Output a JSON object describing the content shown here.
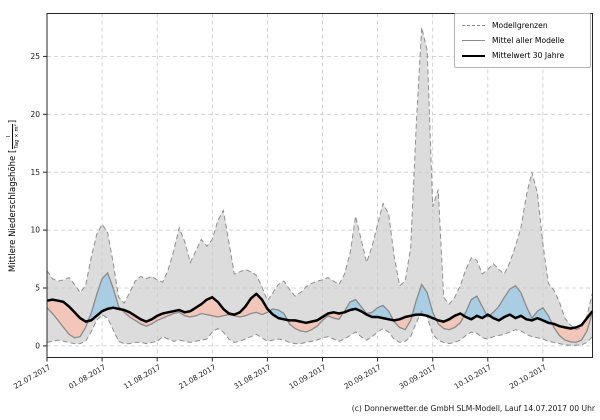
{
  "figure": {
    "kind": "precipitation-forecast-plot"
  },
  "footer": {
    "credit": "(c) Donnerwetter.de GmbH SLM-Modell, Lauf 14.07.2017 00 Uhr"
  },
  "legend": {
    "items": [
      {
        "label": "Modellgrenzen",
        "style": "dashed-gray"
      },
      {
        "label": "Mittel aller Modelle",
        "style": "solid-gray"
      },
      {
        "label": "Mittelwert 30 Jahre",
        "style": "solid-black"
      }
    ]
  },
  "y_axis": {
    "label_main": "Mittlere Niederschlagshöhe",
    "bracket_open": "[",
    "bracket_close": "]",
    "unit_numerator": "l",
    "unit_denominator": "Tag × m²",
    "ticks": [
      0,
      5,
      10,
      15,
      20,
      25
    ]
  },
  "x_axis": {
    "tick_labels": [
      "22.07.2017",
      "01.08.2017",
      "11.08.2017",
      "21.08.2017",
      "31.08.2017",
      "10.09.2017",
      "20.09.2017",
      "30.09.2017",
      "10.10.2017",
      "20.10.2017"
    ],
    "tick_days": [
      0,
      10,
      20,
      30,
      40,
      50,
      60,
      70,
      80,
      90
    ]
  },
  "chart_data": {
    "type": "area",
    "title": "",
    "xlabel": "",
    "ylabel": "Mittlere Niederschlagshöhe [l/(Tag × m²)]",
    "x_unit": "days since 22.07.2017",
    "ylim": [
      -1,
      28.7
    ],
    "grid": true,
    "legend_position": "upper right",
    "x_tick_days": [
      0,
      10,
      20,
      30,
      40,
      50,
      60,
      70,
      80,
      90
    ],
    "x_tick_labels": [
      "22.07.2017",
      "01.08.2017",
      "11.08.2017",
      "21.08.2017",
      "31.08.2017",
      "10.09.2017",
      "20.09.2017",
      "30.09.2017",
      "10.10.2017",
      "20.10.2017"
    ],
    "y_ticks": [
      0,
      5,
      10,
      15,
      20,
      25
    ],
    "series": [
      {
        "name": "Modellgrenzen (Obergrenze)",
        "role": "band_max",
        "values": [
          6.5,
          5.8,
          5.6,
          5.7,
          5.9,
          5.3,
          4.6,
          5.2,
          7.6,
          9.6,
          10.5,
          9.8,
          7.2,
          4.2,
          3.7,
          4.6,
          5.6,
          6.0,
          5.8,
          6.0,
          5.7,
          5.5,
          6.6,
          8.2,
          10.2,
          9.0,
          7.2,
          8.2,
          9.2,
          8.6,
          9.2,
          10.8,
          11.7,
          9.0,
          6.2,
          6.4,
          6.6,
          6.4,
          6.1,
          5.1,
          3.9,
          4.6,
          5.3,
          5.6,
          4.9,
          4.3,
          4.6,
          5.1,
          5.4,
          5.6,
          5.7,
          5.9,
          5.6,
          5.3,
          6.2,
          8.0,
          11.2,
          9.2,
          7.2,
          8.6,
          10.5,
          12.3,
          11.4,
          7.8,
          5.2,
          5.6,
          8.5,
          19.0,
          27.5,
          25.5,
          12.0,
          13.5,
          4.2,
          3.6,
          4.2,
          5.2,
          6.6,
          7.6,
          7.4,
          6.2,
          6.6,
          7.1,
          6.6,
          6.2,
          7.2,
          8.6,
          10.2,
          13.0,
          15.0,
          13.2,
          8.8,
          5.4,
          4.8,
          3.8,
          2.4,
          1.8,
          1.4,
          1.6,
          2.6,
          4.6
        ]
      },
      {
        "name": "Modellgrenzen (Untergrenze)",
        "role": "band_min",
        "values": [
          0.3,
          0.4,
          0.5,
          0.4,
          0.3,
          0.2,
          0.2,
          0.4,
          1.2,
          2.2,
          2.7,
          2.4,
          1.4,
          0.4,
          0.2,
          0.2,
          0.3,
          0.3,
          0.2,
          0.3,
          0.4,
          0.8,
          0.6,
          0.4,
          0.5,
          0.4,
          0.3,
          0.4,
          0.5,
          0.6,
          1.2,
          1.5,
          1.2,
          0.6,
          0.3,
          0.4,
          0.6,
          0.8,
          1.0,
          0.7,
          0.4,
          0.5,
          0.6,
          0.5,
          0.3,
          0.2,
          0.2,
          0.3,
          0.4,
          0.5,
          0.7,
          0.8,
          0.6,
          0.4,
          0.6,
          0.9,
          1.2,
          0.8,
          0.5,
          0.8,
          1.2,
          1.5,
          1.2,
          0.6,
          0.3,
          0.4,
          0.8,
          2.0,
          3.0,
          2.5,
          1.0,
          0.5,
          0.3,
          0.2,
          0.3,
          0.5,
          0.9,
          1.2,
          1.1,
          0.7,
          0.6,
          0.8,
          0.9,
          1.0,
          1.2,
          1.4,
          1.3,
          1.0,
          0.8,
          0.7,
          0.6,
          0.4,
          0.3,
          0.2,
          0.1,
          0.05,
          0.05,
          0.1,
          0.3,
          0.8
        ]
      },
      {
        "name": "Mittel aller Modelle",
        "role": "model_mean",
        "values": [
          3.3,
          2.8,
          2.2,
          1.6,
          1.0,
          0.7,
          0.8,
          1.6,
          2.8,
          4.4,
          5.8,
          6.3,
          5.0,
          3.4,
          2.9,
          2.5,
          2.2,
          1.9,
          1.7,
          1.9,
          2.2,
          2.4,
          2.6,
          2.8,
          2.9,
          2.6,
          2.5,
          2.6,
          2.8,
          2.7,
          2.6,
          2.5,
          2.6,
          2.7,
          2.6,
          2.5,
          2.6,
          2.8,
          2.9,
          2.7,
          2.9,
          3.2,
          3.1,
          2.8,
          1.9,
          1.5,
          1.3,
          1.2,
          1.4,
          1.7,
          2.2,
          2.6,
          2.4,
          2.3,
          3.0,
          3.8,
          4.0,
          3.4,
          2.8,
          2.9,
          3.3,
          3.5,
          3.0,
          2.1,
          1.6,
          1.4,
          2.2,
          3.9,
          5.3,
          4.6,
          2.9,
          1.9,
          1.5,
          1.4,
          1.6,
          2.0,
          2.9,
          4.0,
          4.3,
          3.4,
          2.5,
          2.9,
          3.4,
          4.2,
          4.9,
          5.2,
          4.6,
          3.4,
          2.4,
          3.0,
          3.3,
          2.6,
          1.6,
          0.9,
          0.5,
          0.35,
          0.3,
          0.5,
          1.3,
          2.9
        ]
      },
      {
        "name": "Mittelwert 30 Jahre",
        "role": "climate_mean",
        "values": [
          3.9,
          4.0,
          3.9,
          3.8,
          3.4,
          2.9,
          2.4,
          2.1,
          2.2,
          2.6,
          3.0,
          3.2,
          3.3,
          3.2,
          3.1,
          2.9,
          2.6,
          2.3,
          2.1,
          2.3,
          2.6,
          2.8,
          2.9,
          3.0,
          3.1,
          2.9,
          3.0,
          3.3,
          3.6,
          4.0,
          4.2,
          3.8,
          3.2,
          2.8,
          2.7,
          2.9,
          3.4,
          4.1,
          4.5,
          4.0,
          3.2,
          2.7,
          2.4,
          2.3,
          2.2,
          2.2,
          2.1,
          2.0,
          2.1,
          2.2,
          2.5,
          2.8,
          2.9,
          2.8,
          2.9,
          3.1,
          3.2,
          3.0,
          2.7,
          2.5,
          2.5,
          2.4,
          2.3,
          2.2,
          2.3,
          2.5,
          2.6,
          2.7,
          2.7,
          2.6,
          2.4,
          2.2,
          2.1,
          2.3,
          2.6,
          2.8,
          2.5,
          2.3,
          2.6,
          2.4,
          2.7,
          2.4,
          2.2,
          2.5,
          2.7,
          2.4,
          2.6,
          2.3,
          2.2,
          2.4,
          2.2,
          2.0,
          1.9,
          1.7,
          1.6,
          1.5,
          1.6,
          1.8,
          2.4,
          3.0
        ]
      }
    ],
    "colors": {
      "band_fill": "#dcdcdc",
      "band_edge": "#8f8f8f",
      "above_fill": "#a9cde2",
      "below_fill": "#f2c7b9",
      "model_mean_line": "#8a8a8a",
      "climate_mean_line": "#000000",
      "grid": "#c8c8c8",
      "spine": "#262626",
      "tick_text": "#1a1a1a"
    }
  }
}
